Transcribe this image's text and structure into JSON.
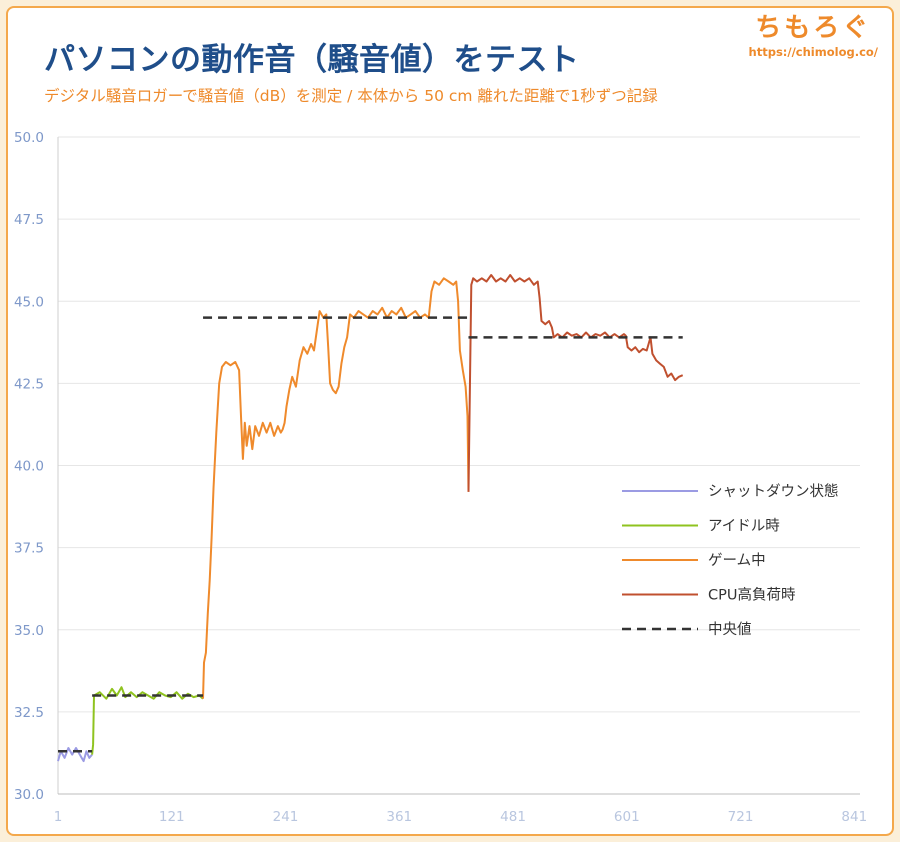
{
  "header": {
    "title": "パソコンの動作音（騒音値）をテスト",
    "subtitle": "デジタル騒音ロガーで騒音値（dB）を測定 / 本体から 50 cm 離れた距離で1秒ずつ記録"
  },
  "logo": {
    "text": "ちもろぐ",
    "url": "https://chimolog.co/"
  },
  "colors": {
    "background": "#fbefd9",
    "frame_border": "#f4a84b",
    "title": "#1f4e8a",
    "subtitle": "#ee8a2b",
    "grid": "#e6e6e6",
    "axis_labels": "#7e98c9"
  },
  "chart_data": {
    "type": "line",
    "title": "",
    "xlabel": "",
    "ylabel": "",
    "xlim": [
      1,
      847
    ],
    "ylim": [
      30.0,
      50.0
    ],
    "xticks": [
      1,
      121,
      241,
      361,
      481,
      601,
      721,
      841
    ],
    "yticks": [
      30.0,
      32.5,
      35.0,
      37.5,
      40.0,
      42.5,
      45.0,
      47.5,
      50.0
    ],
    "grid": "horizontal",
    "legend_position": "right-middle",
    "series": [
      {
        "name": "シャットダウン状態",
        "color": "#9b9be3",
        "style": "solid",
        "points": [
          [
            1,
            31.0
          ],
          [
            4,
            31.3
          ],
          [
            8,
            31.1
          ],
          [
            12,
            31.4
          ],
          [
            16,
            31.2
          ],
          [
            20,
            31.4
          ],
          [
            24,
            31.2
          ],
          [
            28,
            31.0
          ],
          [
            31,
            31.3
          ],
          [
            34,
            31.1
          ],
          [
            37,
            31.2
          ]
        ]
      },
      {
        "name": "アイドル時",
        "color": "#8fc31f",
        "style": "solid",
        "points": [
          [
            37,
            31.2
          ],
          [
            38,
            31.5
          ],
          [
            39,
            33.0
          ],
          [
            45,
            33.1
          ],
          [
            52,
            32.9
          ],
          [
            58,
            33.2
          ],
          [
            63,
            33.0
          ],
          [
            68,
            33.25
          ],
          [
            72,
            32.95
          ],
          [
            78,
            33.1
          ],
          [
            84,
            32.95
          ],
          [
            90,
            33.1
          ],
          [
            96,
            33.0
          ],
          [
            102,
            32.9
          ],
          [
            108,
            33.1
          ],
          [
            114,
            33.0
          ],
          [
            120,
            32.95
          ],
          [
            126,
            33.1
          ],
          [
            132,
            32.9
          ],
          [
            138,
            33.05
          ],
          [
            144,
            32.95
          ],
          [
            150,
            33.0
          ],
          [
            154,
            32.9
          ]
        ]
      },
      {
        "name": "ゲーム中",
        "color": "#ef8a2c",
        "style": "solid",
        "points": [
          [
            154,
            32.9
          ],
          [
            155,
            34.0
          ],
          [
            157,
            34.3
          ],
          [
            159,
            35.5
          ],
          [
            161,
            36.5
          ],
          [
            163,
            37.8
          ],
          [
            165,
            39.3
          ],
          [
            168,
            41.0
          ],
          [
            171,
            42.5
          ],
          [
            174,
            43.0
          ],
          [
            178,
            43.15
          ],
          [
            183,
            43.05
          ],
          [
            188,
            43.15
          ],
          [
            192,
            42.9
          ],
          [
            194,
            41.5
          ],
          [
            196,
            40.2
          ],
          [
            198,
            41.3
          ],
          [
            200,
            40.6
          ],
          [
            203,
            41.2
          ],
          [
            206,
            40.5
          ],
          [
            209,
            41.2
          ],
          [
            213,
            40.9
          ],
          [
            217,
            41.3
          ],
          [
            221,
            41.0
          ],
          [
            225,
            41.3
          ],
          [
            229,
            40.9
          ],
          [
            233,
            41.2
          ],
          [
            236,
            41.0
          ],
          [
            238,
            41.1
          ],
          [
            240,
            41.3
          ],
          [
            242,
            41.8
          ],
          [
            245,
            42.3
          ],
          [
            248,
            42.7
          ],
          [
            252,
            42.4
          ],
          [
            256,
            43.2
          ],
          [
            260,
            43.6
          ],
          [
            264,
            43.4
          ],
          [
            268,
            43.7
          ],
          [
            271,
            43.5
          ],
          [
            274,
            44.1
          ],
          [
            277,
            44.7
          ],
          [
            281,
            44.5
          ],
          [
            284,
            44.6
          ],
          [
            286,
            43.6
          ],
          [
            288,
            42.5
          ],
          [
            291,
            42.3
          ],
          [
            294,
            42.2
          ],
          [
            297,
            42.4
          ],
          [
            300,
            43.1
          ],
          [
            303,
            43.6
          ],
          [
            306,
            43.9
          ],
          [
            309,
            44.6
          ],
          [
            313,
            44.5
          ],
          [
            318,
            44.7
          ],
          [
            323,
            44.6
          ],
          [
            328,
            44.5
          ],
          [
            333,
            44.7
          ],
          [
            338,
            44.6
          ],
          [
            343,
            44.8
          ],
          [
            348,
            44.5
          ],
          [
            353,
            44.7
          ],
          [
            358,
            44.6
          ],
          [
            363,
            44.8
          ],
          [
            368,
            44.5
          ],
          [
            373,
            44.6
          ],
          [
            378,
            44.7
          ],
          [
            383,
            44.5
          ],
          [
            388,
            44.6
          ],
          [
            392,
            44.5
          ],
          [
            395,
            45.3
          ],
          [
            398,
            45.6
          ],
          [
            403,
            45.5
          ],
          [
            408,
            45.7
          ],
          [
            413,
            45.6
          ],
          [
            418,
            45.5
          ],
          [
            421,
            45.6
          ],
          [
            423,
            45.0
          ],
          [
            425,
            43.5
          ],
          [
            428,
            42.9
          ],
          [
            431,
            42.4
          ],
          [
            433,
            41.5
          ],
          [
            434,
            39.2
          ]
        ]
      },
      {
        "name": "CPU高負荷時",
        "color": "#c0502f",
        "style": "solid",
        "points": [
          [
            434,
            39.2
          ],
          [
            436,
            43.5
          ],
          [
            437,
            45.5
          ],
          [
            439,
            45.7
          ],
          [
            443,
            45.6
          ],
          [
            448,
            45.7
          ],
          [
            453,
            45.6
          ],
          [
            458,
            45.8
          ],
          [
            463,
            45.6
          ],
          [
            468,
            45.7
          ],
          [
            473,
            45.6
          ],
          [
            478,
            45.8
          ],
          [
            483,
            45.6
          ],
          [
            488,
            45.7
          ],
          [
            493,
            45.6
          ],
          [
            498,
            45.7
          ],
          [
            503,
            45.5
          ],
          [
            507,
            45.6
          ],
          [
            509,
            45.1
          ],
          [
            511,
            44.4
          ],
          [
            515,
            44.3
          ],
          [
            519,
            44.4
          ],
          [
            522,
            44.2
          ],
          [
            524,
            43.9
          ],
          [
            528,
            44.0
          ],
          [
            533,
            43.9
          ],
          [
            538,
            44.05
          ],
          [
            543,
            43.95
          ],
          [
            548,
            44.0
          ],
          [
            553,
            43.9
          ],
          [
            558,
            44.05
          ],
          [
            563,
            43.9
          ],
          [
            568,
            44.0
          ],
          [
            573,
            43.95
          ],
          [
            578,
            44.05
          ],
          [
            583,
            43.9
          ],
          [
            588,
            44.0
          ],
          [
            593,
            43.9
          ],
          [
            598,
            44.0
          ],
          [
            600,
            43.95
          ],
          [
            602,
            43.6
          ],
          [
            606,
            43.5
          ],
          [
            610,
            43.6
          ],
          [
            614,
            43.45
          ],
          [
            618,
            43.55
          ],
          [
            622,
            43.5
          ],
          [
            626,
            43.9
          ],
          [
            628,
            43.4
          ],
          [
            632,
            43.2
          ],
          [
            636,
            43.1
          ],
          [
            640,
            43.0
          ],
          [
            644,
            42.7
          ],
          [
            648,
            42.8
          ],
          [
            652,
            42.6
          ],
          [
            656,
            42.7
          ],
          [
            660,
            42.75
          ]
        ]
      },
      {
        "name": "中央値",
        "color": "#333333",
        "style": "dashed",
        "segments": [
          {
            "x": [
              1,
              37
            ],
            "y": 31.3
          },
          {
            "x": [
              37,
              154
            ],
            "y": 33.0
          },
          {
            "x": [
              154,
              434
            ],
            "y": 44.5
          },
          {
            "x": [
              434,
              660
            ],
            "y": 43.9
          }
        ]
      }
    ]
  }
}
